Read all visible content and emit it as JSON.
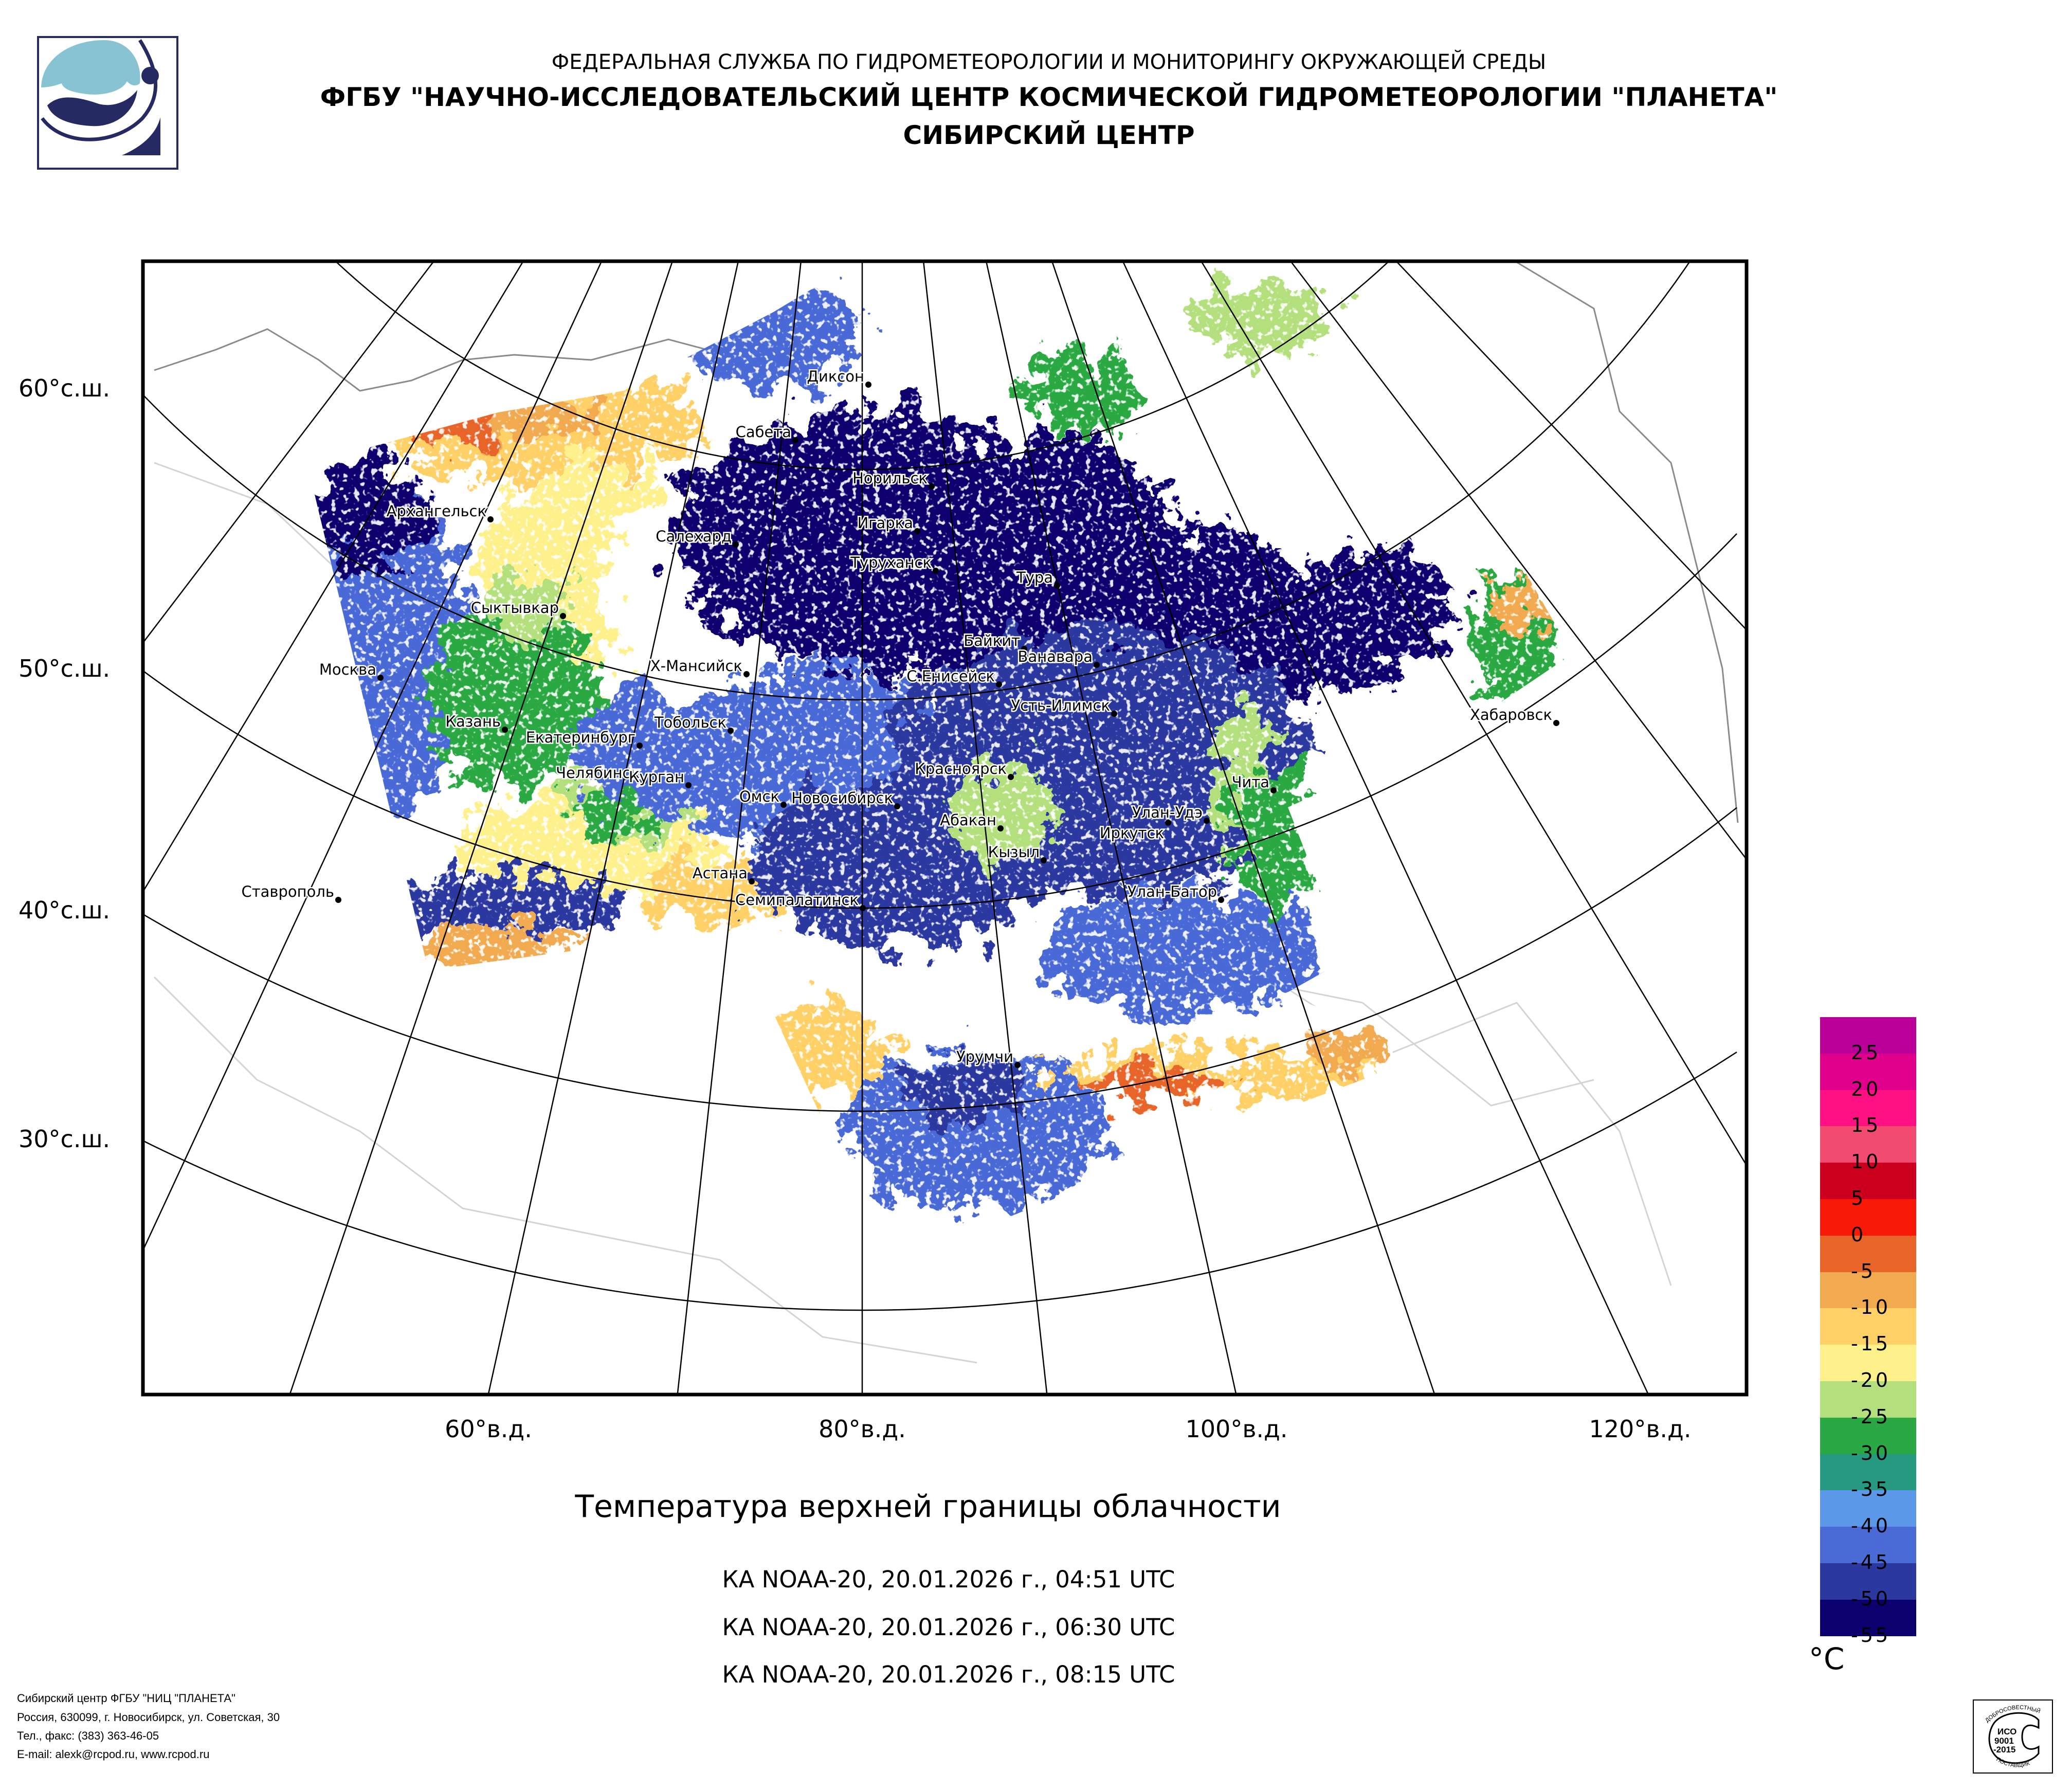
{
  "header": {
    "line1": "ФЕДЕРАЛЬНАЯ СЛУЖБА ПО ГИДРОМЕТЕОРОЛОГИИ И МОНИТОРИНГУ ОКРУЖАЮЩЕЙ СРЕДЫ",
    "line2": "ФГБУ \"НАУЧНО-ИССЛЕДОВАТЕЛЬСКИЙ ЦЕНТР КОСМИЧЕСКОЙ ГИДРОМЕТЕОРОЛОГИИ \"ПЛАНЕТА\"",
    "line3": "СИБИРСКИЙ ЦЕНТР"
  },
  "map": {
    "lat_labels": [
      "60°с.ш.",
      "50°с.ш.",
      "40°с.ш.",
      "30°с.ш."
    ],
    "lon_labels": [
      "60°в.д.",
      "80°в.д.",
      "100°в.д.",
      "120°в.д."
    ],
    "cities": [
      "Диксон",
      "Сабета",
      "Норильск",
      "Игарка",
      "Салехард",
      "Туруханск",
      "Тура",
      "Архангельск",
      "Сыктывкар",
      "Байкит",
      "Ванавара",
      "Москва",
      "Х-Мансийск",
      "С.Енисейск",
      "Усть-Илимск",
      "Казань",
      "Тобольск",
      "Екатеринбург",
      "Хабаровск",
      "Красноярск",
      "Челябинск",
      "Курган",
      "Омск",
      "Чита",
      "Новосибирск",
      "Абакан",
      "Улан-Удэ",
      "Иркутск",
      "Кызыл",
      "Астана",
      "Семипалатинск",
      "Улан-Батор",
      "Урумчи",
      "Ставрополь"
    ]
  },
  "title": "Температура верхней границы облачности",
  "passes": [
    "КА NOAA-20, 20.01.2026 г., 04:51 UTC",
    "КА NOAA-20, 20.01.2026 г., 06:30 UTC",
    "КА NOAA-20, 20.01.2026 г., 08:15 UTC"
  ],
  "legend": {
    "unit": "°C",
    "labels": [
      "25",
      "20",
      "15",
      "10",
      "5",
      "0",
      "-5",
      "-10",
      "-15",
      "-20",
      "-25",
      "-30",
      "-35",
      "-40",
      "-45",
      "-50",
      "-55"
    ],
    "colors": [
      "#bb0099",
      "#e0008c",
      "#ff1082",
      "#f24b72",
      "#cc001e",
      "#f81806",
      "#e8652a",
      "#f1aa50",
      "#fed065",
      "#fef08a",
      "#b3e07c",
      "#29a843",
      "#269a80",
      "#5b98e8",
      "#4a6bd6",
      "#2b389f",
      "#0b006e"
    ]
  },
  "footer": {
    "line1": "Сибирский центр ФГБУ \"НИЦ \"ПЛАНЕТА\"",
    "line2": "Россия, 630099, г. Новосибирск, ул. Советская, 30",
    "line3": "Тел., факс: (383) 363-46-05",
    "line4": "E-mail: alexk@rcpod.ru, www.rcpod.ru"
  },
  "iso_badge": {
    "top": "ДОБРОСОВЕСТНЫЙ",
    "code1": "ИСО",
    "code2": "9001",
    "code3": "-2015",
    "bottom": "ПОСТАВЩИК"
  }
}
